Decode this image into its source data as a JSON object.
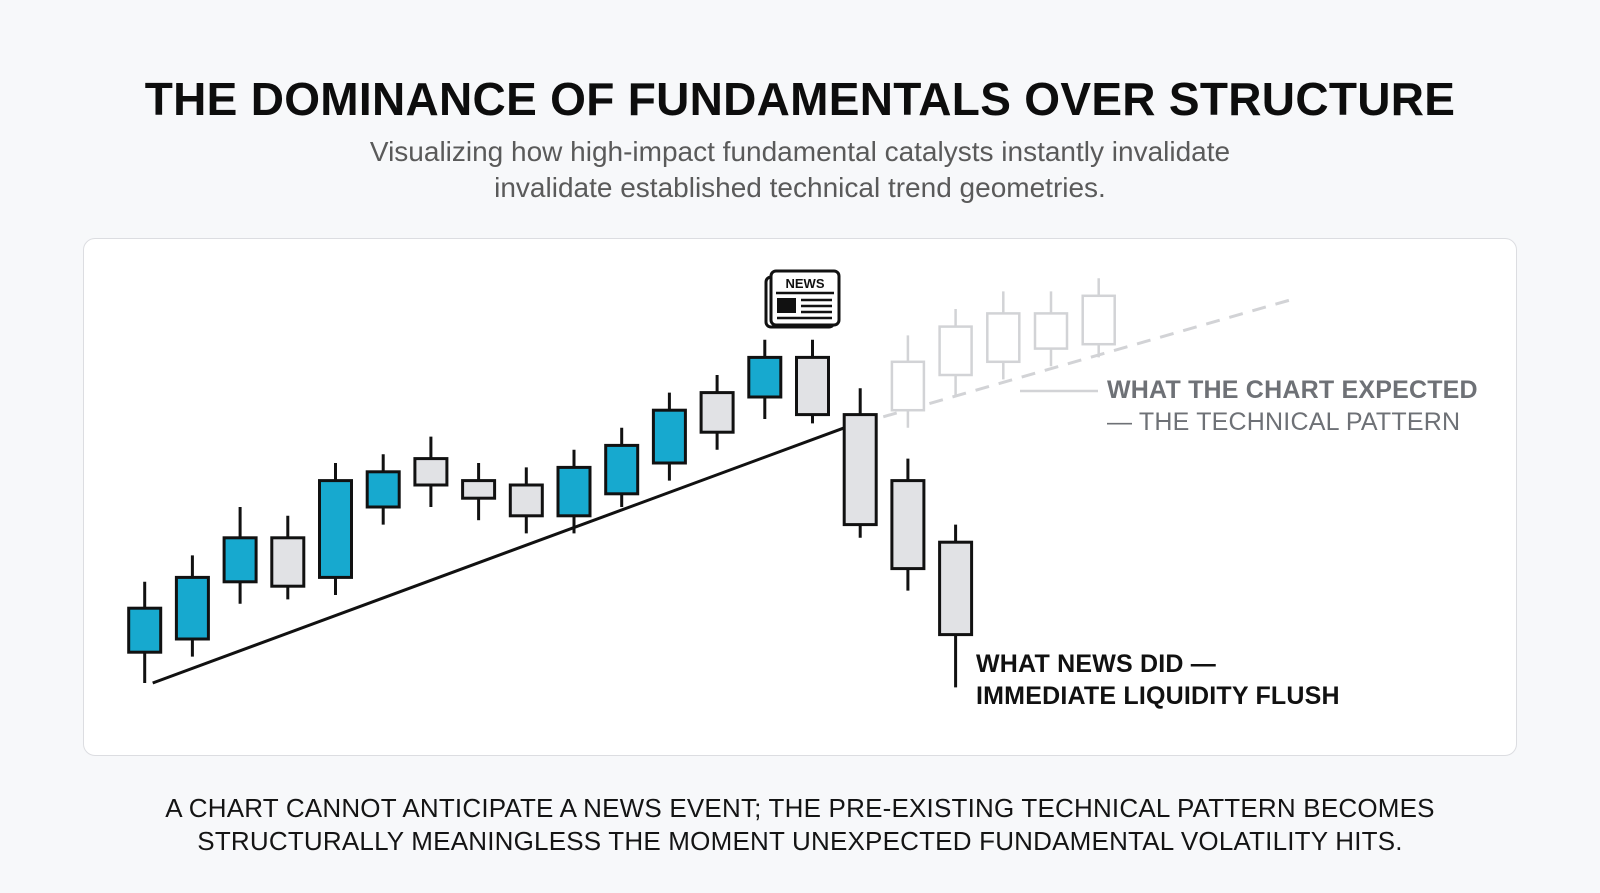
{
  "header": {
    "title": "THE DOMINANCE OF FUNDAMENTALS OVER STRUCTURE",
    "subtitle_line1": "Visualizing how high-impact fundamental catalysts instantly invalidate",
    "subtitle_line2": "invalidate established technical trend geometries."
  },
  "news_icon": {
    "icon": "newspaper-icon",
    "text": "NEWS"
  },
  "labels": {
    "expected_line1": "WHAT THE CHART EXPECTED",
    "expected_line2": "— THE TECHNICAL PATTERN",
    "actual_line1": "WHAT NEWS DID —",
    "actual_line2": "IMMEDIATE LIQUIDITY FLUSH"
  },
  "footer": {
    "line1": "A CHART CANNOT ANTICIPATE A NEWS EVENT; THE PRE-EXISTING TECHNICAL PATTERN BECOMES",
    "line2": "STRUCTURALLY MEANINGLESS THE MOMENT UNEXPECTED FUNDAMENTAL VOLATILITY HITS."
  },
  "colors": {
    "bull": "#17a9cf",
    "bear": "#e1e2e5",
    "outline": "#111111",
    "ghost": "#d2d3d6",
    "trendline": "#111111"
  },
  "chart_data": {
    "type": "candlestick",
    "ylim": [
      0,
      100
    ],
    "grid": false,
    "series": [
      {
        "name": "",
        "style": "actual",
        "candles": [
          {
            "x": 1,
            "open": 12,
            "close": 22,
            "high": 28,
            "low": 5,
            "dir": "up"
          },
          {
            "x": 2,
            "open": 15,
            "close": 29,
            "high": 34,
            "low": 11,
            "dir": "up"
          },
          {
            "x": 3,
            "open": 28,
            "close": 38,
            "high": 45,
            "low": 23,
            "dir": "up"
          },
          {
            "x": 4,
            "open": 38,
            "close": 27,
            "high": 43,
            "low": 24,
            "dir": "down"
          },
          {
            "x": 5,
            "open": 29,
            "close": 51,
            "high": 55,
            "low": 25,
            "dir": "up"
          },
          {
            "x": 6,
            "open": 45,
            "close": 53,
            "high": 57,
            "low": 41,
            "dir": "up"
          },
          {
            "x": 7,
            "open": 56,
            "close": 50,
            "high": 61,
            "low": 45,
            "dir": "down"
          },
          {
            "x": 8,
            "open": 51,
            "close": 47,
            "high": 55,
            "low": 42,
            "dir": "down"
          },
          {
            "x": 9,
            "open": 50,
            "close": 43,
            "high": 54,
            "low": 39,
            "dir": "down"
          },
          {
            "x": 10,
            "open": 43,
            "close": 54,
            "high": 58,
            "low": 39,
            "dir": "up"
          },
          {
            "x": 11,
            "open": 48,
            "close": 59,
            "high": 63,
            "low": 45,
            "dir": "up"
          },
          {
            "x": 12,
            "open": 55,
            "close": 67,
            "high": 71,
            "low": 51,
            "dir": "up"
          },
          {
            "x": 13,
            "open": 71,
            "close": 62,
            "high": 75,
            "low": 58,
            "dir": "down"
          },
          {
            "x": 14,
            "open": 70,
            "close": 79,
            "high": 83,
            "low": 65,
            "dir": "up"
          },
          {
            "x": 15,
            "open": 79,
            "close": 66,
            "high": 83,
            "low": 64,
            "dir": "down"
          },
          {
            "x": 16,
            "open": 66,
            "close": 41,
            "high": 72,
            "low": 38,
            "dir": "down"
          },
          {
            "x": 17,
            "open": 51,
            "close": 31,
            "high": 56,
            "low": 26,
            "dir": "down"
          },
          {
            "x": 18,
            "open": 37,
            "close": 16,
            "high": 41,
            "low": 4,
            "dir": "down"
          }
        ]
      },
      {
        "name": "",
        "style": "expected",
        "candles": [
          {
            "x": 17,
            "open": 67,
            "close": 78,
            "high": 84,
            "low": 63
          },
          {
            "x": 18,
            "open": 75,
            "close": 86,
            "high": 90,
            "low": 70
          },
          {
            "x": 19,
            "open": 78,
            "close": 89,
            "high": 94,
            "low": 74
          },
          {
            "x": 20,
            "open": 81,
            "close": 89,
            "high": 94,
            "low": 77
          },
          {
            "x": 21,
            "open": 82,
            "close": 93,
            "high": 97,
            "low": 79
          }
        ]
      }
    ],
    "trendline": {
      "from": [
        1,
        5
      ],
      "to": [
        15.5,
        63
      ]
    },
    "projection": {
      "from": [
        16,
        64
      ],
      "to": [
        25,
        92
      ]
    },
    "news_event_x": 15
  }
}
